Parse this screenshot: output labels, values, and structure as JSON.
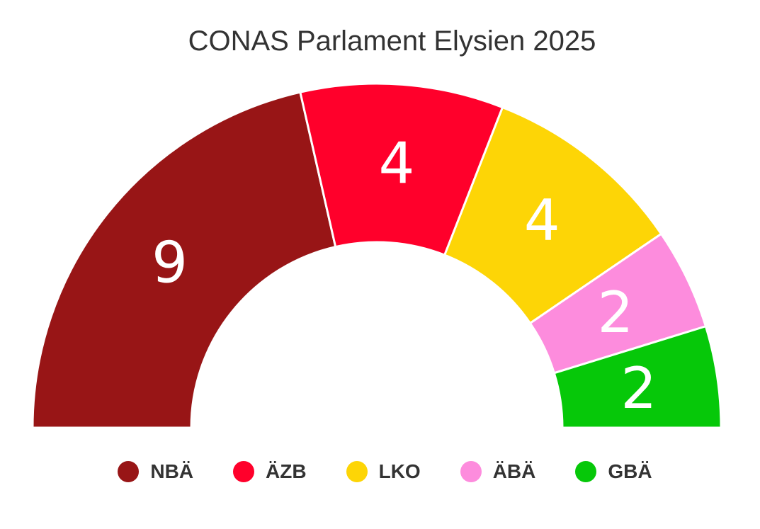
{
  "chart_data": {
    "type": "parliament",
    "title": "CONAS Parlament Elysien 2025",
    "categories": [
      "NBÄ",
      "ÄZB",
      "LKO",
      "ÄBÄ",
      "GBÄ"
    ],
    "values": [
      9,
      4,
      4,
      2,
      2
    ],
    "colors": [
      "#981516",
      "#ff002b",
      "#fdd506",
      "#fd8cdd",
      "#06c809"
    ],
    "legend_position": "bottom",
    "value_labels": [
      "9",
      "4",
      "4",
      "2",
      "2"
    ]
  }
}
